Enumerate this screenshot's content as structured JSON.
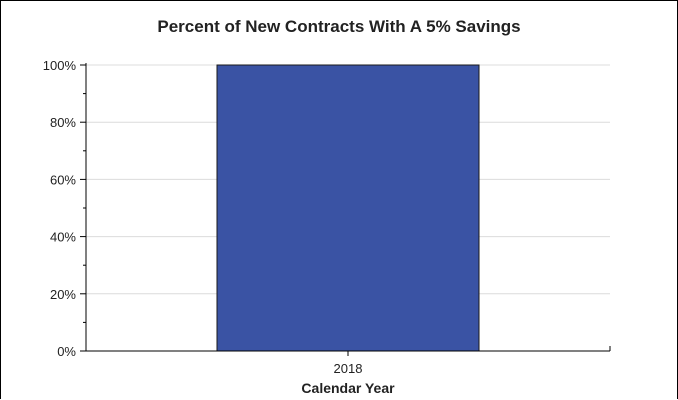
{
  "chart_data": {
    "type": "bar",
    "title": "Percent of New Contracts With A 5% Savings",
    "categories": [
      "2018"
    ],
    "series": [
      {
        "values": [
          100
        ],
        "color": "#3a53a4"
      }
    ],
    "xlabel": "Calendar Year",
    "ylabel": "",
    "ylim": [
      0,
      100
    ],
    "yticks": [
      0,
      20,
      40,
      60,
      80,
      100
    ],
    "ytick_labels": [
      "0%",
      "20%",
      "40%",
      "60%",
      "80%",
      "100%"
    ],
    "grid": true,
    "legend": "none"
  }
}
